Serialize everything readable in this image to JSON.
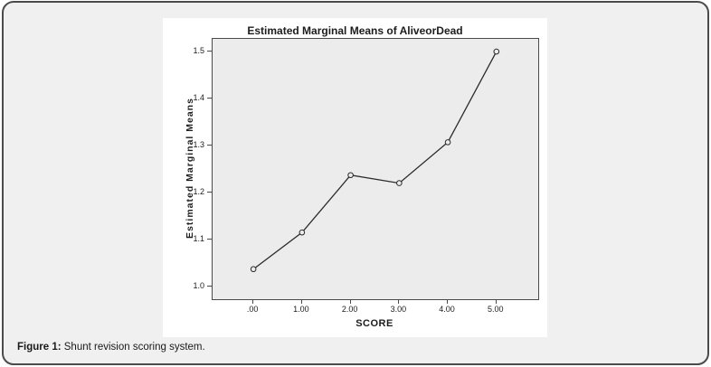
{
  "figure": {
    "caption_label": "Figure 1:",
    "caption_text": " Shunt revision scoring system."
  },
  "chart_data": {
    "type": "line",
    "title": "Estimated Marginal Means of AliveorDead",
    "xlabel": "SCORE",
    "ylabel": "Estimated Marginal Means",
    "x": [
      0,
      1,
      2,
      3,
      4,
      5
    ],
    "x_tick_labels": [
      ".00",
      "1.00",
      "2.00",
      "3.00",
      "4.00",
      "5.00"
    ],
    "values": [
      1.037,
      1.115,
      1.237,
      1.22,
      1.307,
      1.5
    ],
    "y_ticks": [
      1.0,
      1.1,
      1.2,
      1.3,
      1.4,
      1.5
    ],
    "y_tick_labels": [
      "1.0",
      "1.1",
      "1.2",
      "1.3",
      "1.4",
      "1.5"
    ],
    "xlim": [
      -0.84,
      5.86
    ],
    "ylim": [
      0.973,
      1.527
    ],
    "grid": false,
    "legend": "none",
    "marker": "open-circle"
  },
  "colors": {
    "page_bg": "#f0f0f0",
    "panel_bg": "#ffffff",
    "plot_bg": "#ececec",
    "frame_border": "#4b4b4b",
    "axis": "#4a4a4a",
    "line": "#2b2b2b",
    "text": "#1c1c1c"
  }
}
